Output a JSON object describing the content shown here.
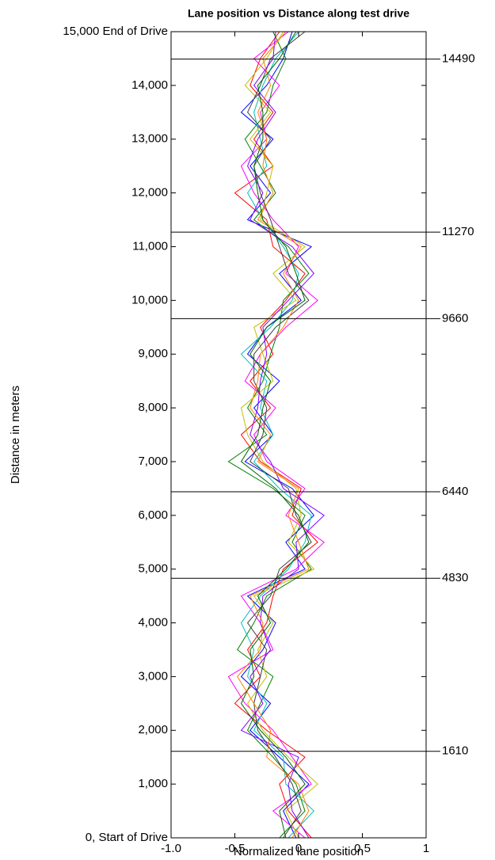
{
  "chart_data": {
    "type": "line",
    "title": "Lane position vs Distance along test drive",
    "xlabel": "Normalized lane position",
    "ylabel": "Distance in meters",
    "xlim": [
      -1,
      1
    ],
    "xticks": [
      {
        "value": -1,
        "label": "-1.0"
      },
      -0.5,
      0,
      0.5,
      1
    ],
    "ylim": [
      0,
      15000
    ],
    "yticks": [
      {
        "value": 0,
        "label": "0, Start of Drive"
      },
      {
        "value": 1000,
        "label": "1,000"
      },
      {
        "value": 2000,
        "label": "2,000"
      },
      {
        "value": 3000,
        "label": "3,000"
      },
      {
        "value": 4000,
        "label": "4,000"
      },
      {
        "value": 5000,
        "label": "5,000"
      },
      {
        "value": 6000,
        "label": "6,000"
      },
      {
        "value": 7000,
        "label": "7,000"
      },
      {
        "value": 8000,
        "label": "8,000"
      },
      {
        "value": 9000,
        "label": "9,000"
      },
      {
        "value": 10000,
        "label": "10,000"
      },
      {
        "value": 11000,
        "label": "11,000"
      },
      {
        "value": 12000,
        "label": "12,000"
      },
      {
        "value": 13000,
        "label": "13,000"
      },
      {
        "value": 14000,
        "label": "14,000"
      },
      {
        "value": 15000,
        "label": "15,000 End of Drive"
      }
    ],
    "reference_lines": [
      1610,
      4830,
      6440,
      9660,
      11270,
      14490
    ],
    "y": [
      0,
      500,
      1000,
      1500,
      2000,
      2500,
      3000,
      3500,
      4000,
      4500,
      5000,
      5500,
      6000,
      6500,
      7000,
      7500,
      8000,
      8500,
      9000,
      9500,
      10000,
      10500,
      11000,
      11500,
      12000,
      12500,
      13000,
      13500,
      14000,
      14500,
      15000
    ],
    "series": [
      {
        "color": "#0000ff",
        "values": [
          -0.02,
          -0.12,
          0.08,
          -0.15,
          -0.38,
          -0.22,
          -0.45,
          -0.28,
          -0.18,
          -0.4,
          0.05,
          -0.1,
          0.12,
          -0.05,
          -0.42,
          -0.2,
          -0.35,
          -0.15,
          -0.4,
          -0.25,
          0.02,
          -0.15,
          0.1,
          -0.4,
          -0.22,
          -0.38,
          -0.2,
          -0.45,
          -0.25,
          -0.12,
          -0.05
        ]
      },
      {
        "color": "#ff0000",
        "values": [
          0.1,
          -0.08,
          -0.15,
          0.05,
          -0.25,
          -0.5,
          -0.3,
          -0.4,
          -0.25,
          -0.2,
          -0.12,
          0.15,
          -0.05,
          0.02,
          -0.3,
          -0.45,
          -0.22,
          -0.38,
          -0.2,
          -0.3,
          -0.1,
          0.05,
          -0.2,
          -0.25,
          -0.5,
          -0.2,
          -0.35,
          -0.2,
          -0.38,
          -0.3,
          -0.15
        ]
      },
      {
        "color": "#008000",
        "values": [
          -0.15,
          0.05,
          -0.02,
          -0.2,
          -0.4,
          -0.3,
          -0.2,
          -0.48,
          -0.35,
          -0.25,
          0.1,
          -0.05,
          0.05,
          -0.2,
          -0.55,
          -0.25,
          -0.4,
          -0.28,
          -0.22,
          -0.15,
          -0.12,
          0.08,
          -0.08,
          -0.35,
          -0.18,
          -0.3,
          -0.42,
          -0.25,
          -0.2,
          -0.1,
          -0.2
        ]
      },
      {
        "color": "#ff00ff",
        "values": [
          0.05,
          -0.2,
          0.1,
          -0.05,
          -0.2,
          -0.42,
          -0.55,
          -0.2,
          -0.3,
          -0.45,
          -0.02,
          0.2,
          -0.1,
          0.05,
          -0.25,
          -0.35,
          -0.18,
          -0.42,
          -0.3,
          -0.1,
          0.15,
          -0.1,
          0,
          -0.2,
          -0.35,
          -0.45,
          -0.25,
          -0.3,
          -0.15,
          -0.35,
          -0.08
        ]
      },
      {
        "color": "#00bfbf",
        "values": [
          -0.08,
          0.12,
          -0.1,
          -0.12,
          -0.35,
          -0.25,
          -0.4,
          -0.35,
          -0.45,
          -0.3,
          -0.08,
          0.05,
          0.1,
          -0.15,
          -0.35,
          -0.2,
          -0.3,
          -0.25,
          -0.45,
          -0.22,
          -0.05,
          0,
          -0.12,
          -0.28,
          -0.4,
          -0.25,
          -0.3,
          -0.35,
          -0.28,
          -0.18,
          0
        ]
      },
      {
        "color": "#bfbf00",
        "values": [
          0,
          -0.1,
          0.15,
          -0.08,
          -0.28,
          -0.4,
          -0.25,
          -0.32,
          -0.2,
          -0.35,
          0.12,
          -0.08,
          0.02,
          -0.02,
          -0.28,
          -0.4,
          -0.45,
          -0.2,
          -0.28,
          -0.35,
          -0.02,
          -0.2,
          0.05,
          -0.3,
          -0.25,
          -0.2,
          -0.38,
          -0.22,
          -0.42,
          -0.25,
          -0.12
        ]
      },
      {
        "color": "#404040",
        "values": [
          -0.12,
          0.02,
          -0.05,
          -0.18,
          -0.32,
          -0.35,
          -0.3,
          -0.25,
          -0.4,
          -0.22,
          -0.15,
          0.1,
          -0.02,
          -0.08,
          -0.38,
          -0.28,
          -0.25,
          -0.35,
          -0.35,
          -0.18,
          0.08,
          -0.08,
          -0.15,
          -0.22,
          -0.3,
          -0.35,
          -0.22,
          -0.4,
          -0.3,
          -0.22,
          0.05
        ]
      },
      {
        "color": "#8000ff",
        "values": [
          0.08,
          -0.05,
          -0.08,
          0,
          -0.45,
          -0.28,
          -0.38,
          -0.22,
          -0.3,
          -0.28,
          0,
          -0.02,
          0.2,
          -0.12,
          -0.22,
          -0.38,
          -0.32,
          -0.3,
          -0.25,
          -0.28,
          -0.08,
          0.12,
          -0.05,
          -0.38,
          -0.28,
          -0.4,
          -0.32,
          -0.18,
          -0.35,
          -0.2,
          -0.18
        ]
      },
      {
        "color": "#ff8000",
        "values": [
          -0.05,
          0.08,
          0,
          -0.25,
          -0.22,
          -0.35,
          -0.48,
          -0.3,
          -0.28,
          -0.38,
          0.08,
          0,
          -0.08,
          0,
          -0.32,
          -0.22,
          -0.38,
          -0.32,
          -0.3,
          -0.12,
          0,
          -0.12,
          0.02,
          -0.32,
          -0.2,
          -0.28,
          -0.25,
          -0.32,
          -0.22,
          -0.28,
          -0.1
        ]
      },
      {
        "color": "#006400",
        "values": [
          -0.1,
          -0.15,
          0.05,
          -0.1,
          -0.3,
          -0.45,
          -0.35,
          -0.38,
          -0.22,
          -0.32,
          -0.1,
          0.08,
          0,
          -0.18,
          -0.45,
          -0.32,
          -0.28,
          -0.22,
          -0.38,
          -0.25,
          0.05,
          -0.02,
          -0.1,
          -0.28,
          -0.32,
          -0.35,
          -0.28,
          -0.28,
          -0.32,
          -0.15,
          -0.02
        ]
      }
    ]
  }
}
